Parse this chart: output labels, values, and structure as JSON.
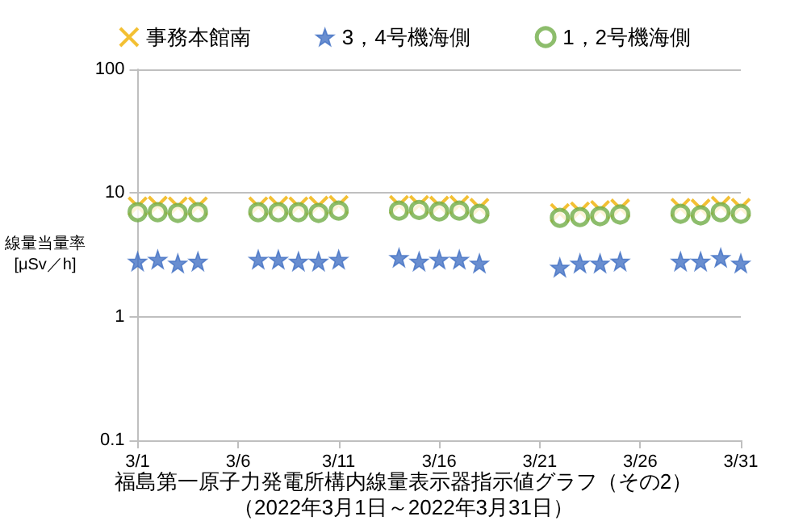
{
  "chart_data": {
    "type": "scatter",
    "title": "福島第一原子力発電所構内線量表示器指示値グラフ（その2）",
    "subtitle": "（2022年3月1日～2022年3月31日）",
    "ylabel": "線量当量率\n[μSv／h]",
    "x": [
      "2022-03-01",
      "2022-03-02",
      "2022-03-03",
      "2022-03-04",
      "2022-03-07",
      "2022-03-08",
      "2022-03-09",
      "2022-03-10",
      "2022-03-11",
      "2022-03-14",
      "2022-03-15",
      "2022-03-16",
      "2022-03-17",
      "2022-03-18",
      "2022-03-22",
      "2022-03-23",
      "2022-03-24",
      "2022-03-25",
      "2022-03-28",
      "2022-03-29",
      "2022-03-30",
      "2022-03-31"
    ],
    "series": [
      {
        "name": "事務本館南",
        "color": "#f0b000",
        "marker": "cross",
        "values": [
          7.8,
          7.9,
          7.8,
          7.8,
          7.8,
          7.9,
          7.8,
          7.9,
          8.0,
          8.0,
          8.0,
          7.9,
          8.0,
          7.6,
          6.9,
          7.1,
          7.3,
          7.5,
          7.6,
          7.5,
          7.9,
          7.6
        ]
      },
      {
        "name": "3，4号機海側",
        "color": "#4472c4",
        "marker": "star",
        "values": [
          2.8,
          2.9,
          2.7,
          2.8,
          2.9,
          2.9,
          2.8,
          2.8,
          2.9,
          3.0,
          2.8,
          2.9,
          2.9,
          2.7,
          2.5,
          2.7,
          2.7,
          2.8,
          2.8,
          2.8,
          3.0,
          2.7
        ]
      },
      {
        "name": "1，2号機海側",
        "color": "#70ad47",
        "marker": "circle",
        "values": [
          7.0,
          7.0,
          6.9,
          7.0,
          7.0,
          7.0,
          7.0,
          6.9,
          7.2,
          7.2,
          7.3,
          7.1,
          7.2,
          6.8,
          6.3,
          6.4,
          6.5,
          6.7,
          6.8,
          6.6,
          7.0,
          6.8
        ]
      }
    ],
    "log": "y",
    "ylim": [
      0.1,
      100
    ],
    "yticks": [
      0.1,
      1,
      10,
      100
    ],
    "xlim": [
      "2022-03-01",
      "2022-03-31"
    ],
    "xticks": [
      {
        "value": "2022-03-01",
        "label": "3/1"
      },
      {
        "value": "2022-03-06",
        "label": "3/6"
      },
      {
        "value": "2022-03-11",
        "label": "3/11"
      },
      {
        "value": "2022-03-16",
        "label": "3/16"
      },
      {
        "value": "2022-03-21",
        "label": "3/21"
      },
      {
        "value": "2022-03-26",
        "label": "3/26"
      },
      {
        "value": "2022-03-31",
        "label": "3/31"
      }
    ],
    "grid": "y",
    "legend": "top"
  }
}
